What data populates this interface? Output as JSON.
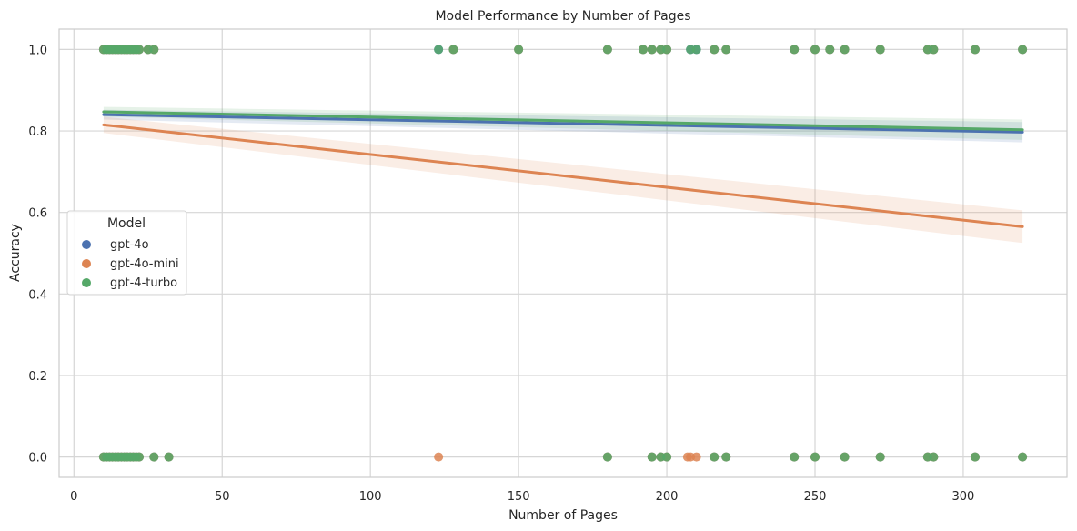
{
  "chart_data": {
    "type": "scatter",
    "title": "Model Performance by Number of Pages",
    "xlabel": "Number of Pages",
    "ylabel": "Accuracy",
    "xlim": [
      -5,
      335
    ],
    "ylim": [
      -0.05,
      1.05
    ],
    "xticks": [
      0,
      50,
      100,
      150,
      200,
      250,
      300
    ],
    "yticks": [
      0.0,
      0.2,
      0.4,
      0.6,
      0.8,
      1.0
    ],
    "xtick_labels": [
      "0",
      "50",
      "100",
      "150",
      "200",
      "250",
      "300"
    ],
    "ytick_labels": [
      "0.0",
      "0.2",
      "0.4",
      "0.6",
      "0.8",
      "1.0"
    ],
    "grid": true,
    "legend": {
      "title": "Model",
      "placement": "center-left"
    },
    "series": [
      {
        "name": "gpt-4o",
        "color": "#4c72b0",
        "fit": {
          "x": [
            10,
            320
          ],
          "y": [
            0.84,
            0.797
          ],
          "band_halfwidth": [
            0.012,
            0.025
          ]
        },
        "points_y1": [
          10,
          11,
          12,
          13,
          14,
          15,
          16,
          17,
          18,
          19,
          20,
          21,
          22,
          25,
          27,
          123,
          128,
          150,
          180,
          192,
          195,
          198,
          200,
          208,
          210,
          216,
          220,
          243,
          250,
          255,
          260,
          272,
          288,
          290,
          304,
          320
        ],
        "points_y0": [
          10,
          11,
          12,
          13,
          14,
          15,
          16,
          17,
          18,
          19,
          20,
          21,
          22,
          27,
          32,
          180,
          195,
          198,
          200,
          216,
          220,
          243,
          250,
          260,
          272,
          288,
          290,
          304,
          320
        ]
      },
      {
        "name": "gpt-4o-mini",
        "color": "#dd8452",
        "fit": {
          "x": [
            10,
            320
          ],
          "y": [
            0.815,
            0.565
          ],
          "band_halfwidth": [
            0.02,
            0.04
          ]
        },
        "points_y1": [
          10,
          11,
          12,
          13,
          14,
          15,
          16,
          17,
          18,
          19,
          20,
          21,
          22,
          25,
          27,
          128,
          150,
          180,
          192,
          195,
          198,
          200,
          216,
          220,
          243,
          250,
          255,
          260,
          272,
          288,
          290,
          304,
          320
        ],
        "points_y0": [
          10,
          11,
          12,
          13,
          14,
          15,
          16,
          17,
          18,
          19,
          20,
          21,
          22,
          27,
          32,
          123,
          180,
          195,
          198,
          200,
          207,
          208,
          210,
          216,
          220,
          243,
          250,
          260,
          272,
          288,
          290,
          304,
          320
        ]
      },
      {
        "name": "gpt-4-turbo",
        "color": "#55a868",
        "fit": {
          "x": [
            10,
            320
          ],
          "y": [
            0.847,
            0.803
          ],
          "band_halfwidth": [
            0.012,
            0.025
          ]
        },
        "points_y1": [
          10,
          11,
          12,
          13,
          14,
          15,
          16,
          17,
          18,
          19,
          20,
          21,
          22,
          25,
          27,
          123,
          128,
          150,
          180,
          192,
          195,
          198,
          200,
          208,
          210,
          216,
          220,
          243,
          250,
          255,
          260,
          272,
          288,
          290,
          304,
          320
        ],
        "points_y0": [
          10,
          11,
          12,
          13,
          14,
          15,
          16,
          17,
          18,
          19,
          20,
          21,
          22,
          27,
          32,
          180,
          195,
          198,
          200,
          216,
          220,
          243,
          250,
          260,
          272,
          288,
          290,
          304,
          320
        ]
      }
    ]
  }
}
